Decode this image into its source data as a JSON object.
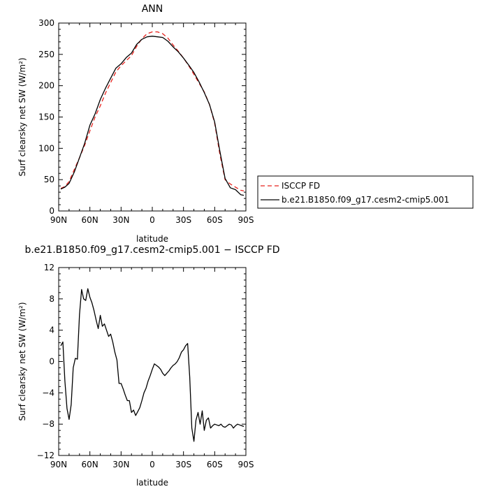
{
  "chart_data": [
    {
      "type": "line",
      "title": "ANN",
      "xlabel": "latitude",
      "ylabel": "Surf clearsky net SW (W/m²)",
      "xlim": [
        -90,
        90
      ],
      "ylim": [
        0,
        300
      ],
      "xticks": [
        {
          "v": -90,
          "label": "90N"
        },
        {
          "v": -60,
          "label": "60N"
        },
        {
          "v": -30,
          "label": "30N"
        },
        {
          "v": 0,
          "label": "0"
        },
        {
          "v": 30,
          "label": "30S"
        },
        {
          "v": 60,
          "label": "60S"
        },
        {
          "v": 90,
          "label": "90S"
        }
      ],
      "yticks": [
        {
          "v": 0,
          "label": "0"
        },
        {
          "v": 50,
          "label": "50"
        },
        {
          "v": 100,
          "label": "100"
        },
        {
          "v": 150,
          "label": "150"
        },
        {
          "v": 200,
          "label": "200"
        },
        {
          "v": 250,
          "label": "250"
        },
        {
          "v": 300,
          "label": "300"
        }
      ],
      "legend_position": "outside-right",
      "series": [
        {
          "name": "ISCCP FD",
          "color": "#e8231e",
          "dash": "dashed",
          "x": [
            -88,
            -84,
            -80,
            -75,
            -70,
            -65,
            -60,
            -55,
            -50,
            -45,
            -40,
            -35,
            -30,
            -25,
            -20,
            -15,
            -10,
            -5,
            0,
            5,
            10,
            15,
            20,
            25,
            30,
            35,
            40,
            45,
            50,
            55,
            60,
            65,
            70,
            75,
            80,
            85,
            88
          ],
          "y": [
            36,
            39,
            47,
            66,
            85,
            105,
            128,
            150,
            168,
            188,
            205,
            222,
            232,
            240,
            248,
            263,
            275,
            283,
            286,
            286,
            283,
            276,
            265,
            255,
            244,
            232,
            218,
            204,
            190,
            170,
            140,
            90,
            50,
            43,
            38,
            33,
            32
          ]
        },
        {
          "name": "b.e21.B1850.f09_g17.cesm2-cmip5.001",
          "color": "#000000",
          "dash": "solid",
          "x": [
            -88,
            -84,
            -80,
            -75,
            -70,
            -65,
            -60,
            -55,
            -50,
            -45,
            -40,
            -35,
            -30,
            -25,
            -20,
            -15,
            -10,
            -5,
            0,
            5,
            10,
            15,
            20,
            25,
            30,
            35,
            40,
            45,
            50,
            55,
            60,
            65,
            70,
            75,
            80,
            85,
            88
          ],
          "y": [
            35,
            38,
            44,
            62,
            85,
            108,
            137,
            155,
            178,
            196,
            212,
            228,
            235,
            245,
            252,
            266,
            274,
            278,
            279,
            278,
            277,
            271,
            262,
            254,
            244,
            233,
            221,
            206,
            189,
            170,
            142,
            95,
            52,
            37,
            34,
            26,
            25
          ]
        }
      ]
    },
    {
      "type": "line",
      "title": "b.e21.B1850.f09_g17.cesm2-cmip5.001 − ISCCP FD",
      "xlabel": "latitude",
      "ylabel": "Surf clearsky net SW (W/m²)",
      "xlim": [
        -90,
        90
      ],
      "ylim": [
        -12,
        12
      ],
      "xticks": [
        {
          "v": -90,
          "label": "90N"
        },
        {
          "v": -60,
          "label": "60N"
        },
        {
          "v": -30,
          "label": "30N"
        },
        {
          "v": 0,
          "label": "0"
        },
        {
          "v": 30,
          "label": "30S"
        },
        {
          "v": 60,
          "label": "60S"
        },
        {
          "v": 90,
          "label": "90S"
        }
      ],
      "yticks": [
        {
          "v": -12,
          "label": "−12"
        },
        {
          "v": -8,
          "label": "−8"
        },
        {
          "v": -4,
          "label": "−4"
        },
        {
          "v": 0,
          "label": "0"
        },
        {
          "v": 4,
          "label": "4"
        },
        {
          "v": 8,
          "label": "8"
        },
        {
          "v": 12,
          "label": "12"
        }
      ],
      "series": [
        {
          "color": "#000000",
          "dash": "solid",
          "x": [
            -88,
            -86,
            -84,
            -82,
            -80,
            -78,
            -76,
            -74,
            -72,
            -70,
            -68,
            -66,
            -64,
            -62,
            -60,
            -58,
            -56,
            -54,
            -52,
            -50,
            -48,
            -46,
            -44,
            -42,
            -40,
            -38,
            -36,
            -34,
            -32,
            -30,
            -28,
            -26,
            -24,
            -22,
            -20,
            -18,
            -16,
            -14,
            -12,
            -10,
            -8,
            -6,
            -4,
            -2,
            0,
            2,
            4,
            6,
            8,
            10,
            12,
            14,
            16,
            18,
            20,
            22,
            24,
            26,
            28,
            30,
            32,
            34,
            36,
            38,
            40,
            42,
            44,
            46,
            48,
            50,
            52,
            54,
            56,
            58,
            60,
            62,
            64,
            66,
            68,
            70,
            72,
            74,
            76,
            78,
            80,
            82,
            84,
            86,
            88
          ],
          "y": [
            2.0,
            2.5,
            -2.5,
            -6.0,
            -7.4,
            -5.5,
            -0.8,
            0.4,
            0.3,
            6.0,
            9.2,
            8.0,
            7.8,
            9.3,
            8.2,
            7.5,
            6.5,
            5.3,
            4.2,
            5.9,
            4.5,
            4.8,
            4.0,
            3.2,
            3.5,
            2.5,
            1.2,
            0.2,
            -2.8,
            -2.8,
            -3.5,
            -4.3,
            -5.0,
            -5.0,
            -6.5,
            -6.2,
            -6.9,
            -6.4,
            -5.9,
            -5.0,
            -4.0,
            -3.4,
            -2.5,
            -1.8,
            -1.0,
            -0.3,
            -0.5,
            -0.7,
            -1.0,
            -1.5,
            -1.8,
            -1.5,
            -1.2,
            -0.8,
            -0.5,
            -0.3,
            0.0,
            0.5,
            1.2,
            1.5,
            2.0,
            2.3,
            -2.0,
            -8.5,
            -10.2,
            -7.5,
            -6.5,
            -8.0,
            -6.3,
            -8.8,
            -7.5,
            -7.2,
            -8.5,
            -8.2,
            -8.0,
            -8.1,
            -8.2,
            -8.0,
            -8.3,
            -8.4,
            -8.2,
            -8.0,
            -8.1,
            -8.5,
            -8.2,
            -8.0,
            -8.1,
            -8.2,
            -8.3
          ]
        }
      ]
    }
  ]
}
